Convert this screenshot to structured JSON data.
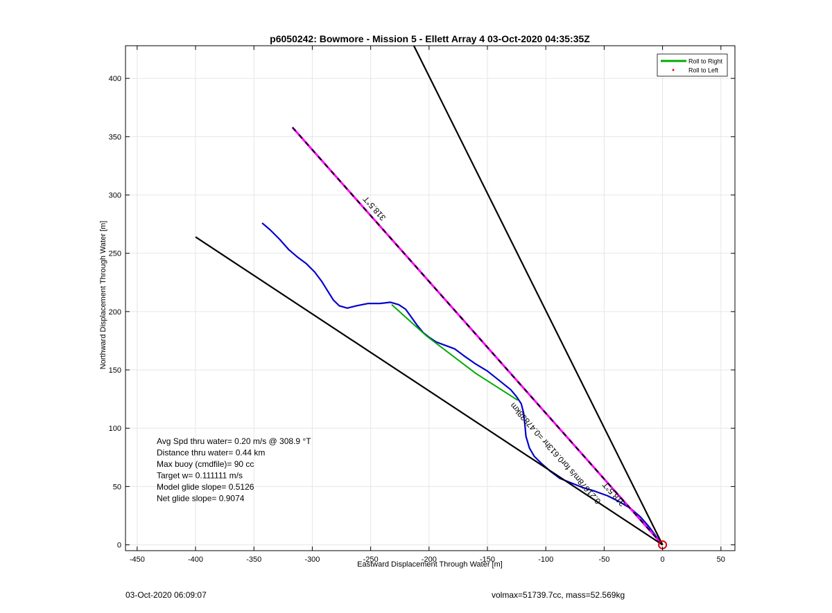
{
  "chart_data": {
    "type": "line",
    "title": "p6050242: Bowmore - Mission 5 - Ellett Array 4 03-Oct-2020 04:35:35Z",
    "xlabel": "Eastward Displacement Through Water [m]",
    "ylabel": "Northward Displacement Through Water [m]",
    "xlim": [
      -460,
      62
    ],
    "ylim": [
      -5,
      428
    ],
    "xticks": [
      -450,
      -400,
      -350,
      -300,
      -250,
      -200,
      -150,
      -100,
      -50,
      0,
      50
    ],
    "yticks": [
      0,
      50,
      100,
      150,
      200,
      250,
      300,
      350,
      400
    ],
    "grid": true,
    "legend": {
      "placement": "top-right",
      "entries": [
        {
          "label": "Roll to Right",
          "color": "#00aa00",
          "marker": "line"
        },
        {
          "label": "Roll to Left",
          "color": "#ff0000",
          "marker": "dot"
        }
      ]
    },
    "series": [
      {
        "style": "track",
        "color": "#0000cc",
        "points": [
          [
            -343,
            276
          ],
          [
            -336,
            270
          ],
          [
            -328,
            262
          ],
          [
            -320,
            253
          ],
          [
            -313,
            247
          ],
          [
            -305,
            241
          ],
          [
            -298,
            234
          ],
          [
            -292,
            226
          ],
          [
            -287,
            218
          ],
          [
            -282,
            210
          ],
          [
            -277,
            205
          ],
          [
            -270,
            203
          ],
          [
            -262,
            205
          ],
          [
            -252,
            207
          ],
          [
            -242,
            207
          ],
          [
            -233,
            208
          ],
          [
            -226,
            206
          ],
          [
            -220,
            202
          ],
          [
            -215,
            195
          ],
          [
            -210,
            188
          ],
          [
            -205,
            182
          ],
          [
            -200,
            178
          ],
          [
            -194,
            174
          ],
          [
            -186,
            171
          ],
          [
            -178,
            168
          ],
          [
            -170,
            162
          ],
          [
            -160,
            155
          ],
          [
            -150,
            149
          ],
          [
            -140,
            141
          ],
          [
            -130,
            133
          ],
          [
            -125,
            127
          ],
          [
            -121,
            121
          ],
          [
            -119,
            113
          ],
          [
            -118,
            104
          ],
          [
            -117,
            93
          ],
          [
            -114,
            83
          ],
          [
            -110,
            76
          ],
          [
            -104,
            70
          ],
          [
            -96,
            63
          ],
          [
            -88,
            57
          ],
          [
            -78,
            53
          ],
          [
            -68,
            49
          ],
          [
            -58,
            46
          ],
          [
            -47,
            42
          ],
          [
            -37,
            37
          ],
          [
            -27,
            31
          ],
          [
            -19,
            24
          ],
          [
            -12,
            16
          ],
          [
            -6,
            8
          ],
          [
            0,
            0
          ]
        ]
      },
      {
        "style": "roll-right",
        "color": "#00aa00",
        "points": [
          [
            -232,
            206
          ],
          [
            -202,
            179
          ],
          [
            -160,
            147
          ],
          [
            -124,
            124
          ]
        ]
      },
      {
        "style": "target-heading",
        "color": "#ff00ff",
        "points": [
          [
            0,
            0
          ],
          [
            -317,
            358
          ]
        ]
      },
      {
        "style": "bound",
        "color": "#000000",
        "points": [
          [
            0,
            0
          ],
          [
            -400,
            264
          ]
        ]
      },
      {
        "style": "bound",
        "color": "#000000",
        "points": [
          [
            0,
            0
          ],
          [
            -213,
            428
          ]
        ]
      }
    ],
    "annotations": [
      {
        "text": "318.5°T",
        "x": -245,
        "y": 290,
        "angle": 48.5
      },
      {
        "text": "318.5°T",
        "x": -40,
        "y": 45,
        "angle": 48.5
      },
      {
        "text": "0.21678m/s for0.613hr =0.47838km",
        "x": -90,
        "y": 80,
        "angle": 48.5
      }
    ],
    "start_marker": {
      "x": 0,
      "y": 0,
      "color": "#dd0000"
    },
    "stats": [
      "Avg Spd thru water=  0.20 m/s @ 308.9 °T",
      "Distance thru water=  0.44 km",
      "Max buoy (cmdfile)= 90 cc",
      "Target w= 0.111111 m/s",
      "Model glide slope= 0.5126",
      "Net glide slope= 0.9074"
    ]
  },
  "footer": {
    "date": "03-Oct-2020 06:09:07",
    "mass_info": "volmax=51739.7cc, mass=52.569kg"
  }
}
